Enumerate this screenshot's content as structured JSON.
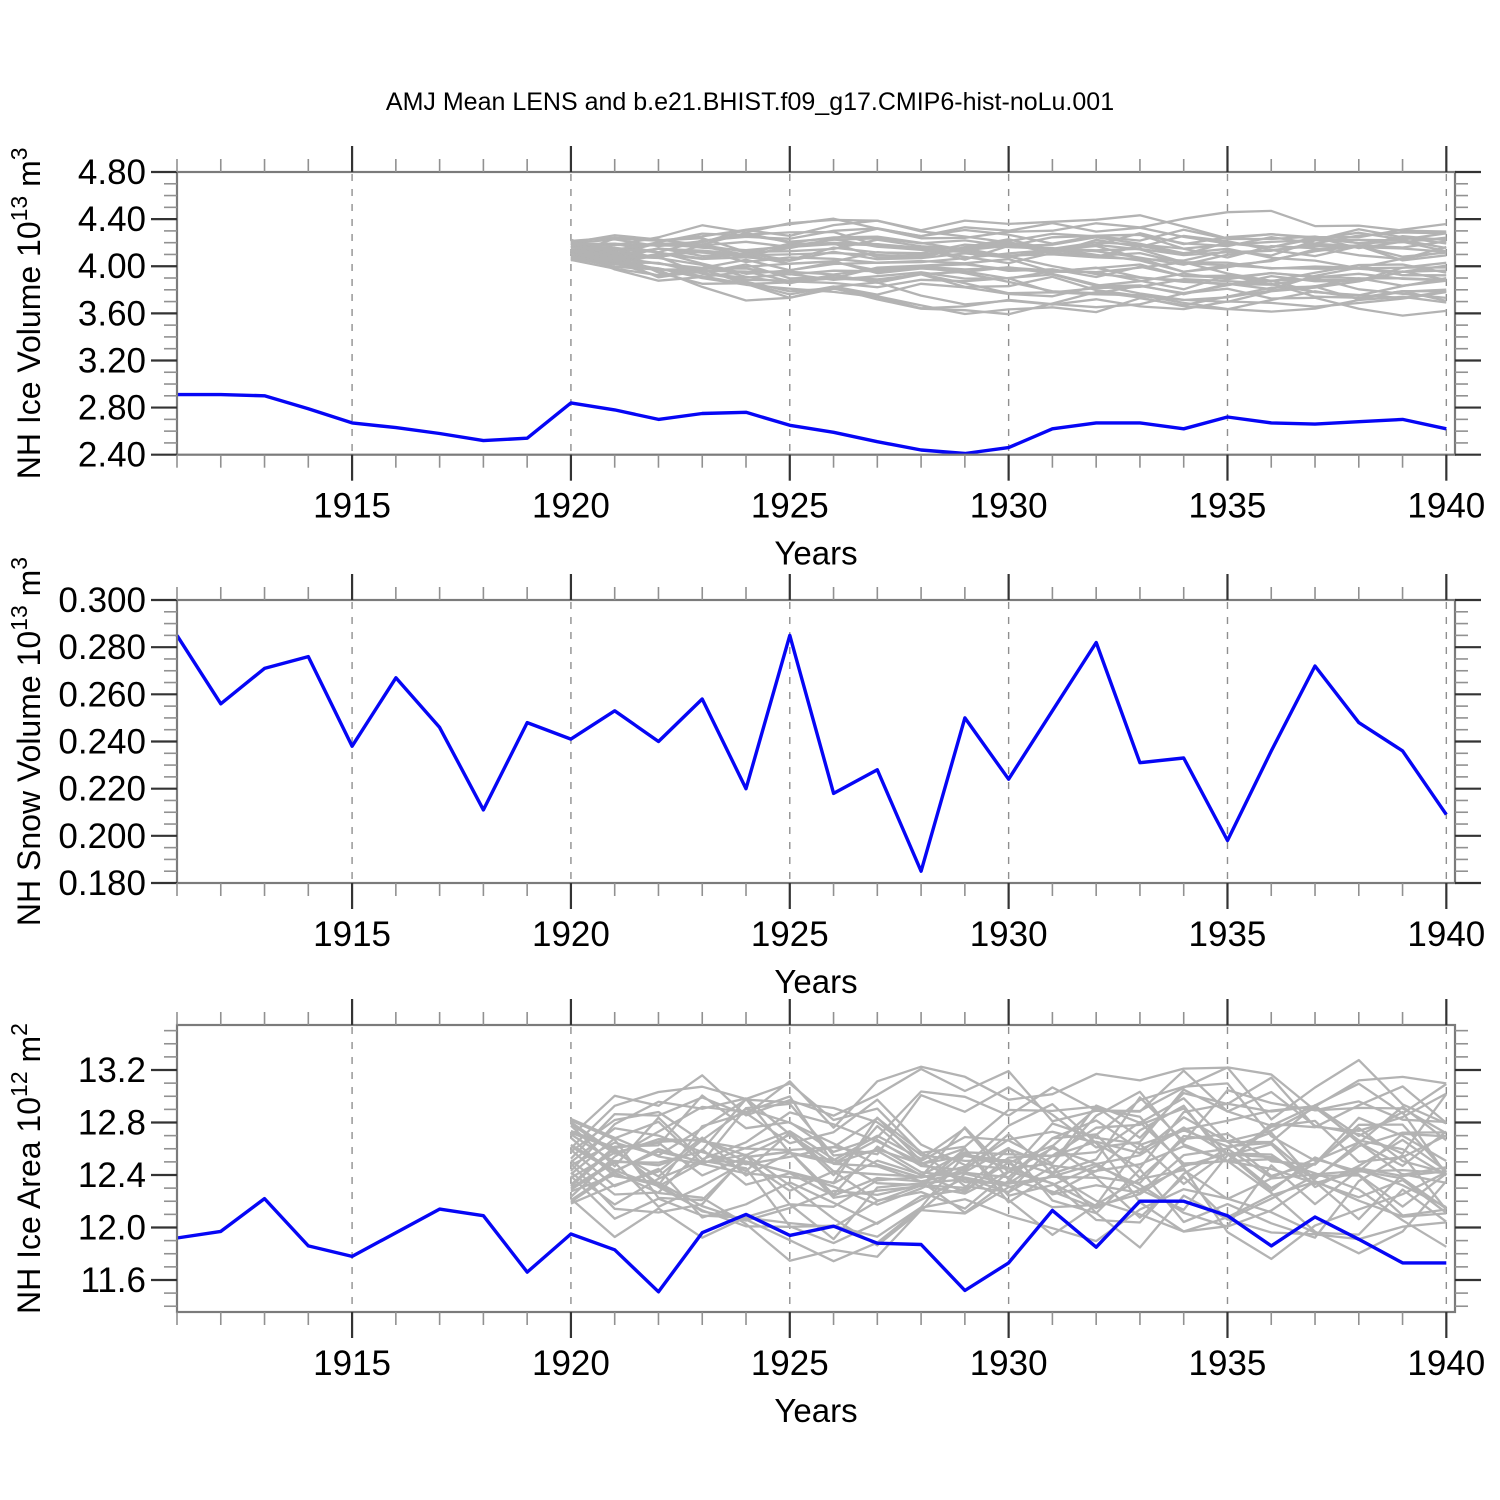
{
  "title": "AMJ Mean LENS and b.e21.BHIST.f09_g17.CMIP6-hist-noLu.001",
  "colors": {
    "background": "#ffffff",
    "main_line": "#0606f5",
    "ensemble_line": "#b3b3b3",
    "axis_border": "#7b7b7b",
    "major_tick": "#333333",
    "minor_tick": "#919191",
    "gridline": "#8f8f8f",
    "text": "#000000"
  },
  "x_axis": {
    "label": "Years",
    "years_start": 1911,
    "years_end": 1940,
    "major_tick_labels": [
      "1915",
      "1920",
      "1925",
      "1930",
      "1935",
      "1940"
    ],
    "major_tick_vals": [
      1915,
      1920,
      1925,
      1930,
      1935,
      1940
    ],
    "minor_step": 1,
    "grid_years": [
      1915,
      1920,
      1925,
      1930,
      1935,
      1940
    ]
  },
  "chart_data": [
    {
      "id": "nh-ice-volume",
      "type": "line",
      "ylabel_text": "NH Ice Volume 10^13 m^3",
      "ylabel_parts": {
        "base": "NH Ice Volume 10",
        "sup": "13",
        "base2": " m",
        "sup2": "3"
      },
      "xlabel": "Years",
      "ylim": [
        2.4,
        4.8
      ],
      "ytick_vals": [
        2.4,
        2.8,
        3.2,
        3.6,
        4.0,
        4.4,
        4.8
      ],
      "ytick_labels": [
        "2.40",
        "2.80",
        "3.20",
        "3.60",
        "4.00",
        "4.40",
        "4.80"
      ],
      "y_minor_step": 0.1,
      "series": [
        {
          "key": "single_run_blue",
          "color_key": "main_line",
          "x_start": 1911,
          "values": [
            2.91,
            2.91,
            2.9,
            2.79,
            2.67,
            2.63,
            2.58,
            2.52,
            2.54,
            2.84,
            2.78,
            2.7,
            2.75,
            2.76,
            2.65,
            2.59,
            2.51,
            2.44,
            2.41,
            2.46,
            2.62,
            2.67,
            2.67,
            2.62,
            2.72,
            2.67,
            2.66,
            2.68,
            2.7,
            2.62
          ]
        }
      ],
      "ensemble": {
        "key": "lens_members_gray",
        "color_key": "ensemble_line",
        "count": 35,
        "seed": 11,
        "start_year": 1920,
        "end_year": 1940,
        "start_min": 4.05,
        "start_max": 4.24,
        "mean_min": 3.7,
        "mean_max": 4.33,
        "reversion": 0.3,
        "noise": 0.09,
        "clamp_min": 3.37,
        "clamp_max": 4.54
      }
    },
    {
      "id": "nh-snow-volume",
      "type": "line",
      "ylabel_text": "NH Snow Volume 10^13 m^3",
      "ylabel_parts": {
        "base": "NH Snow Volume 10",
        "sup": "13",
        "base2": " m",
        "sup2": "3"
      },
      "xlabel": "Years",
      "ylim": [
        0.18,
        0.3
      ],
      "ytick_vals": [
        0.18,
        0.2,
        0.22,
        0.24,
        0.26,
        0.28,
        0.3
      ],
      "ytick_labels": [
        "0.180",
        "0.200",
        "0.220",
        "0.240",
        "0.260",
        "0.280",
        "0.300"
      ],
      "y_minor_step": 0.005,
      "series": [
        {
          "key": "single_run_blue",
          "color_key": "main_line",
          "x_start": 1911,
          "values": [
            0.285,
            0.256,
            0.271,
            0.276,
            0.238,
            0.267,
            0.246,
            0.211,
            0.248,
            0.241,
            0.253,
            0.24,
            0.258,
            0.22,
            0.285,
            0.218,
            0.228,
            0.185,
            0.25,
            0.224,
            0.253,
            0.282,
            0.231,
            0.233,
            0.198,
            0.236,
            0.272,
            0.248,
            0.236,
            0.209
          ]
        }
      ],
      "ensemble": null
    },
    {
      "id": "nh-ice-area",
      "type": "line",
      "ylabel_text": "NH Ice Area 10^12 m^2",
      "ylabel_parts": {
        "base": "NH Ice Area 10",
        "sup": "12",
        "base2": " m",
        "sup2": "2"
      },
      "xlabel": "Years",
      "ylim": [
        11.356,
        13.543
      ],
      "ytick_vals": [
        11.6,
        12.0,
        12.4,
        12.8,
        13.2
      ],
      "ytick_labels": [
        "11.6",
        "12.0",
        "12.4",
        "12.8",
        "13.2"
      ],
      "y_minor_step": 0.1,
      "series": [
        {
          "key": "single_run_blue",
          "color_key": "main_line",
          "x_start": 1911,
          "values": [
            11.92,
            11.97,
            12.22,
            11.86,
            11.78,
            11.96,
            12.14,
            12.09,
            11.66,
            11.95,
            11.83,
            11.51,
            11.96,
            12.1,
            11.94,
            12.01,
            11.88,
            11.87,
            11.52,
            11.73,
            12.13,
            11.85,
            12.2,
            12.2,
            12.09,
            11.86,
            12.08,
            11.91,
            11.73,
            11.73
          ]
        }
      ],
      "ensemble": {
        "key": "lens_members_gray",
        "color_key": "ensemble_line",
        "count": 35,
        "seed": 23,
        "start_year": 1920,
        "end_year": 1940,
        "start_min": 12.18,
        "start_max": 12.88,
        "mean_min": 12.02,
        "mean_max": 12.96,
        "reversion": 0.55,
        "noise": 0.3,
        "clamp_min": 11.57,
        "clamp_max": 13.45
      }
    }
  ]
}
